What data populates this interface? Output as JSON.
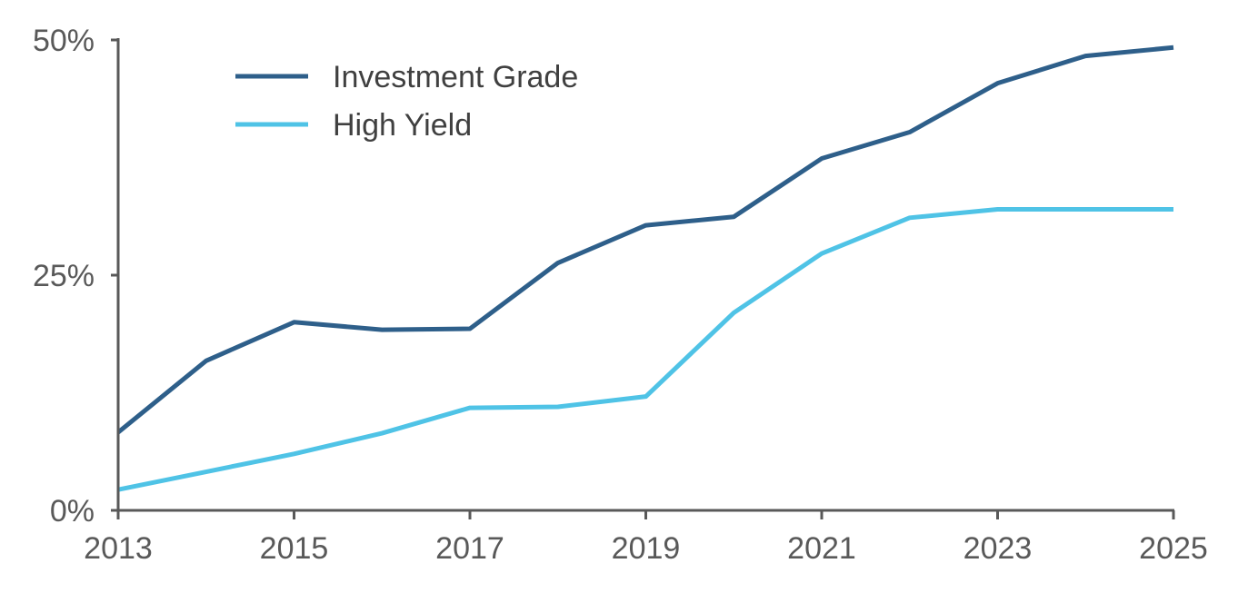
{
  "chart_data": {
    "type": "line",
    "title": "",
    "xlabel": "",
    "ylabel": "",
    "x": [
      2013,
      2014,
      2015,
      2016,
      2017,
      2018,
      2019,
      2020,
      2021,
      2022,
      2023,
      2024,
      2025
    ],
    "xlim": [
      2013,
      2025
    ],
    "ylim": [
      0,
      50
    ],
    "x_ticks": [
      "2013",
      "2015",
      "2017",
      "2019",
      "2021",
      "2023",
      "2025"
    ],
    "y_ticks": [
      "0%",
      "25%",
      "50%"
    ],
    "grid": false,
    "legend_position": "top-left",
    "series": [
      {
        "name": "Investment Grade",
        "color": "#2e5f8a",
        "values": [
          8.3,
          15.9,
          20.0,
          19.2,
          19.3,
          26.3,
          30.3,
          31.2,
          37.4,
          40.2,
          45.4,
          48.3,
          49.2
        ]
      },
      {
        "name": "High Yield",
        "color": "#4fc3e6",
        "values": [
          2.2,
          4.1,
          6.0,
          8.2,
          10.9,
          11.0,
          12.1,
          21.0,
          27.3,
          31.1,
          32.0,
          32.0,
          32.0
        ]
      }
    ]
  }
}
